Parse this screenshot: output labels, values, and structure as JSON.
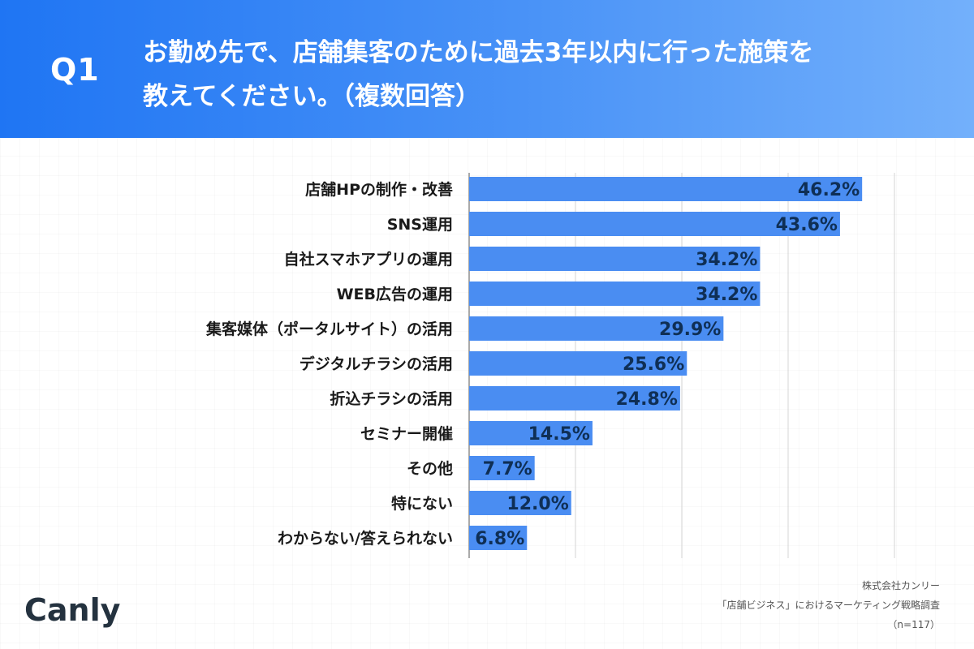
{
  "header": {
    "question_label": "Q1",
    "question_line1": "お勤め先で、店舗集客のために過去3年以内に行った施策を",
    "question_line2": "教えてください。（複数回答）"
  },
  "colors": {
    "bar": "#4a8df2",
    "header_start": "#1f75f3",
    "header_end": "#73b0fb",
    "value_text": "#0f2f55"
  },
  "chart_data": {
    "type": "bar",
    "orientation": "horizontal",
    "categories": [
      "店舗HPの制作・改善",
      "SNS運用",
      "自社スマホアプリの運用",
      "WEB広告の運用",
      "集客媒体（ポータルサイト）の活用",
      "デジタルチラシの活用",
      "折込チラシの活用",
      "セミナー開催",
      "その他",
      "特にない",
      "わからない/答えられない"
    ],
    "values": [
      46.2,
      43.6,
      34.2,
      34.2,
      29.9,
      25.6,
      24.8,
      14.5,
      7.7,
      12.0,
      6.8
    ],
    "value_labels": [
      "46.2%",
      "43.6%",
      "34.2%",
      "34.2%",
      "29.9%",
      "25.6%",
      "24.8%",
      "14.5%",
      "7.7%",
      "12.0%",
      "6.8%"
    ],
    "unit": "%",
    "xlim": [
      0,
      50
    ],
    "grid_step": 12.5,
    "grid": true,
    "legend": "none"
  },
  "footer": {
    "logo_text": "Canly",
    "source_company": "株式会社カンリー",
    "source_survey": "「店舗ビジネス」におけるマーケティング戦略調査",
    "sample_size": "（n=117）"
  }
}
